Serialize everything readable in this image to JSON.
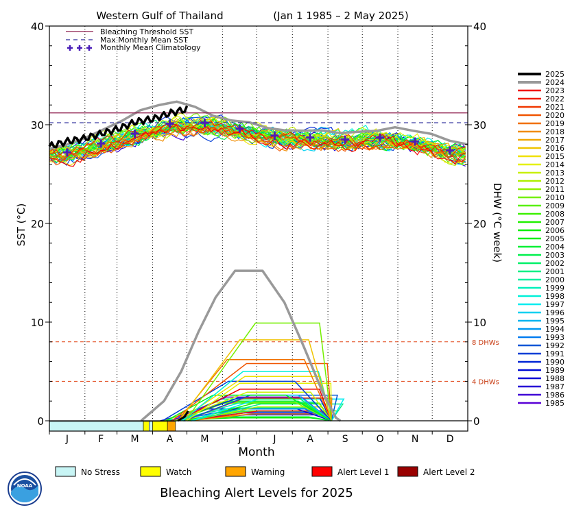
{
  "chart_data": {
    "type": "line",
    "title": "Western Gulf of Thailand",
    "date_range": "(Jan 1 1985 – 2 May 2025)",
    "xlabel": "Month",
    "ylabel_left": "SST (°C)",
    "ylabel_right": "DHW (°C week)",
    "ylim": [
      0,
      40
    ],
    "yticks": [
      "0",
      "10",
      "20",
      "30",
      "40"
    ],
    "months": [
      "J",
      "F",
      "M",
      "A",
      "M",
      "J",
      "J",
      "A",
      "S",
      "O",
      "N",
      "D"
    ],
    "legend_left": [
      "Bleaching Threshold SST",
      "Max Monthly Mean SST",
      "Monthly Mean Climatology"
    ],
    "bleaching_threshold_sst": 31.2,
    "max_monthly_mean_sst": 30.2,
    "climatology": [
      27.2,
      28.1,
      29.1,
      30.1,
      30.2,
      29.6,
      28.9,
      28.7,
      28.5,
      28.7,
      28.3,
      27.4
    ],
    "dhw_reference_lines": [
      {
        "value": 8,
        "label": "8 DHWs"
      },
      {
        "value": 4,
        "label": "4 DHWs"
      }
    ],
    "years": [
      "2025",
      "2024",
      "2023",
      "2022",
      "2021",
      "2020",
      "2019",
      "2018",
      "2017",
      "2016",
      "2015",
      "2014",
      "2013",
      "2012",
      "2011",
      "2010",
      "2009",
      "2008",
      "2007",
      "2006",
      "2005",
      "2004",
      "2003",
      "2002",
      "2001",
      "2000",
      "1999",
      "1998",
      "1997",
      "1996",
      "1995",
      "1994",
      "1993",
      "1992",
      "1991",
      "1990",
      "1989",
      "1988",
      "1987",
      "1986",
      "1985"
    ],
    "dhw_peaks": {
      "2024": 15.2,
      "2010": 9.9,
      "2016": 8.2,
      "2019": 6.2,
      "2020": 5.8,
      "1998": 5.0,
      "2015": 4.5,
      "2014": 3.8,
      "1991": 4.0,
      "2023": 3.2,
      "2005": 2.6,
      "2013": 2.9,
      "2002": 2.2,
      "2007": 1.8,
      "2012": 1.4,
      "1987": 1.2,
      "2022": 1.0
    },
    "series_2025": {
      "name": "2025",
      "x": [
        "Jan 1",
        "Jan 15",
        "Feb 1",
        "Feb 15",
        "Mar 1",
        "Mar 15",
        "Apr 1",
        "Apr 15",
        "May 2"
      ],
      "sst": [
        27.8,
        28.3,
        28.6,
        29.1,
        29.6,
        30.3,
        30.6,
        31.2,
        31.6
      ],
      "dhw_end": 1.0
    },
    "series_2024_sst": [
      27.6,
      28.0,
      28.8,
      29.6,
      30.4,
      31.4,
      32.0,
      32.4,
      31.8,
      31.0,
      30.5,
      30.3,
      29.8,
      29.5,
      29.4,
      29.3,
      29.2,
      29.3,
      29.5,
      29.6,
      29.4,
      29.0,
      28.5,
      28.0
    ]
  },
  "alert_levels": {
    "title": "Bleaching Alert Levels for 2025",
    "items": [
      {
        "label": "No Stress",
        "color": "#c8f5f5"
      },
      {
        "label": "Watch",
        "color": "#ffff00"
      },
      {
        "label": "Warning",
        "color": "#ffa500"
      },
      {
        "label": "Alert Level 1",
        "color": "#ff0000"
      },
      {
        "label": "Alert Level 2",
        "color": "#990000"
      }
    ]
  },
  "logo_text": "NOAA"
}
